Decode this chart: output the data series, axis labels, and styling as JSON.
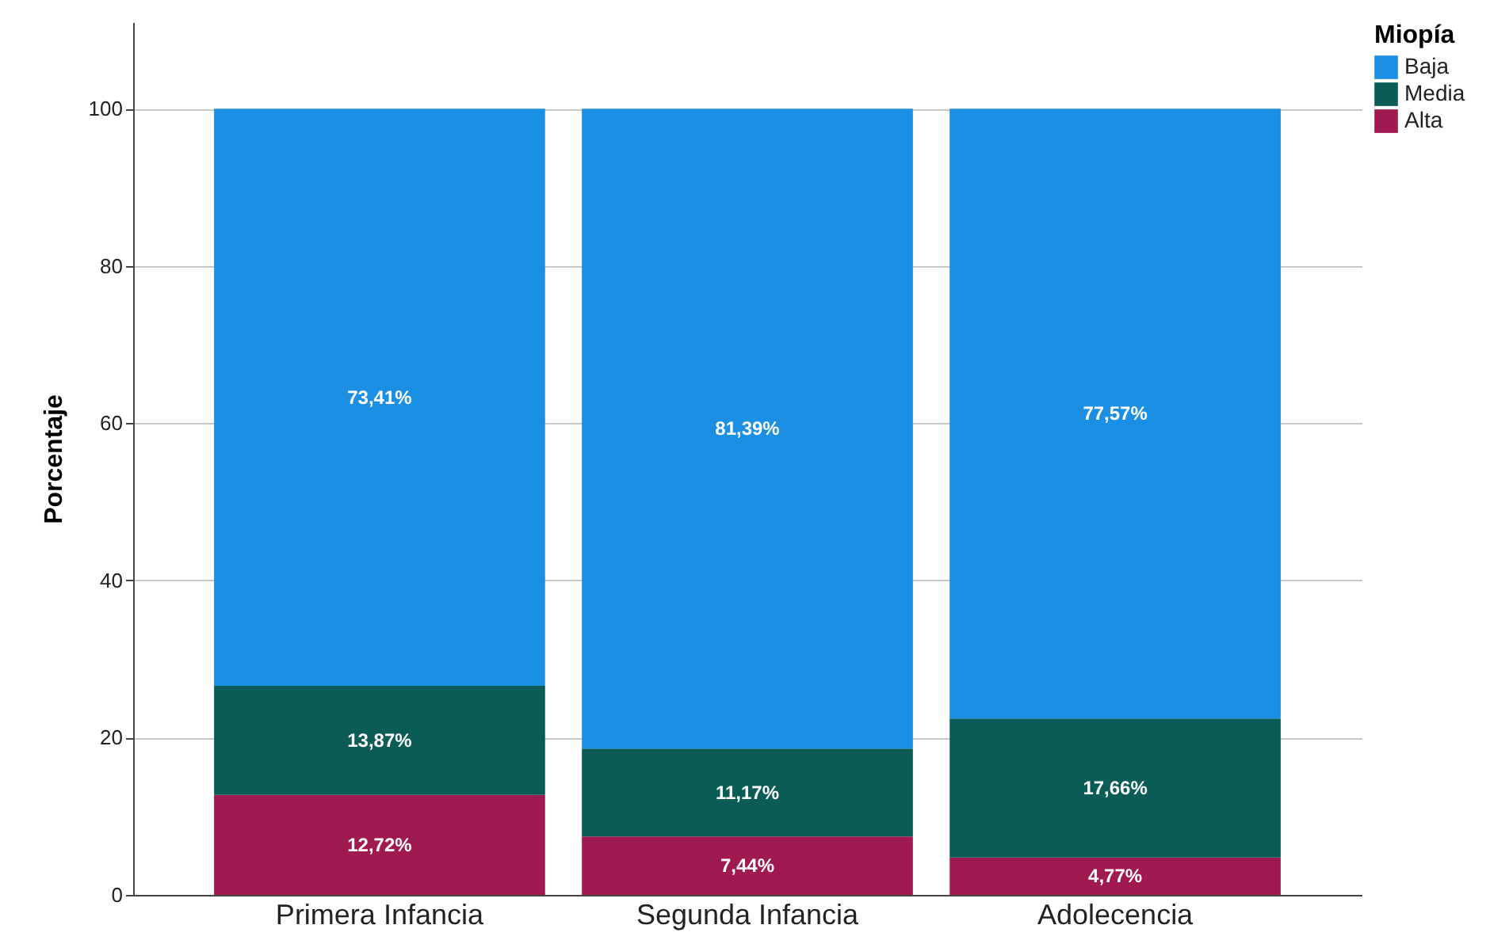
{
  "chart_data": {
    "type": "bar",
    "stacked": true,
    "ylabel": "Porcentaje",
    "legend_title": "Miopía",
    "legend": "top right",
    "grid": "y",
    "categories": [
      "Primera Infancia",
      "Segunda Infancia",
      "Adolecencia"
    ],
    "ylim": [
      0,
      111
    ],
    "yticks": [
      0,
      20,
      40,
      60,
      80,
      100
    ],
    "series": [
      {
        "name": "Alta",
        "color": "#a0194f",
        "values": [
          12.72,
          7.44,
          4.77
        ],
        "value_labels": [
          "12,72%",
          "7,44%",
          "4,77%"
        ]
      },
      {
        "name": "Media",
        "color": "#0b5c57",
        "values": [
          13.87,
          11.17,
          17.66
        ],
        "value_labels": [
          "13,87%",
          "11,17%",
          "17,66%"
        ]
      },
      {
        "name": "Baja",
        "color": "#1b8fe3",
        "values": [
          73.41,
          81.39,
          77.57
        ],
        "value_labels": [
          "73,41%",
          "81,39%",
          "77,57%"
        ]
      }
    ]
  }
}
